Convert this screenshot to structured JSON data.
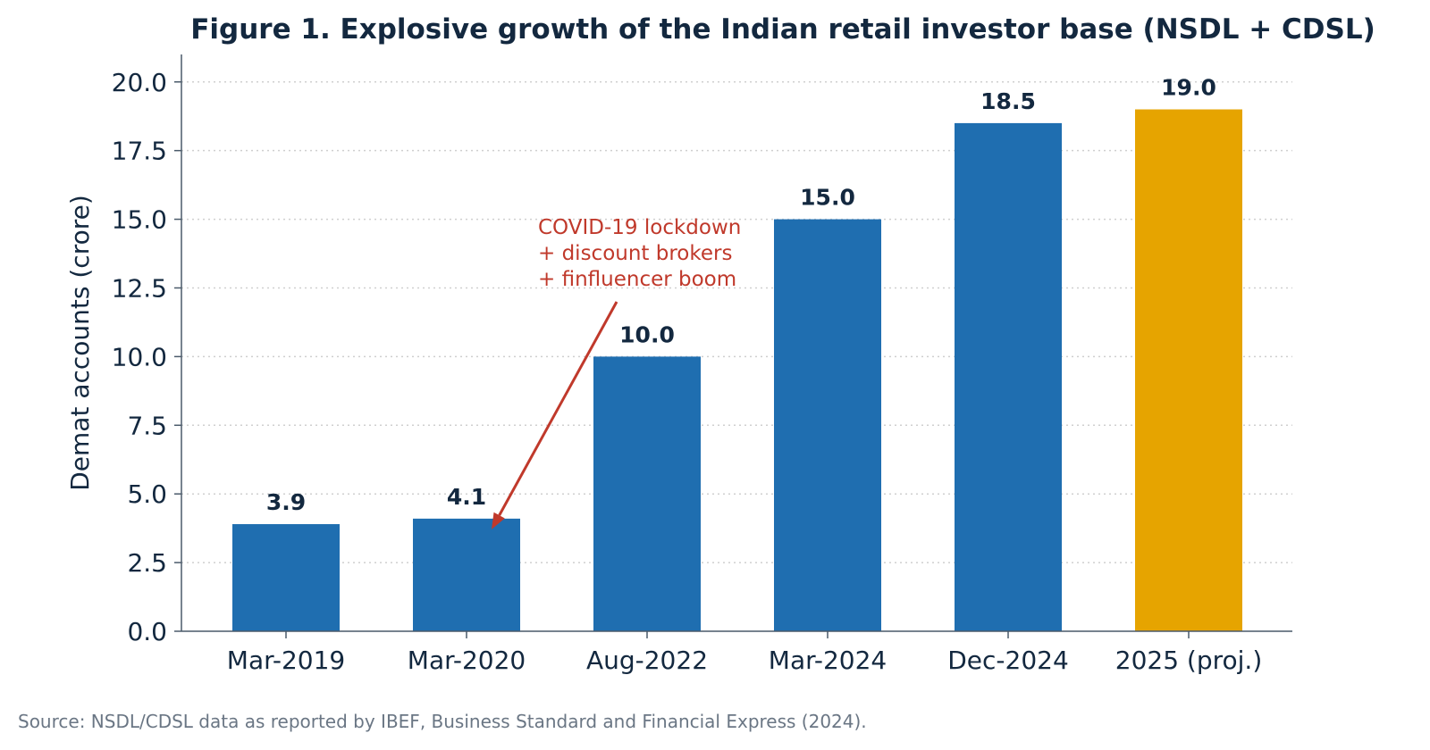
{
  "chart_data": {
    "type": "bar",
    "title": "Figure 1.  Explosive growth of the Indian retail investor base (NSDL + CDSL)",
    "ylabel": "Demat accounts (crore)",
    "xlabel": "",
    "categories": [
      "Mar-2019",
      "Mar-2020",
      "Aug-2022",
      "Mar-2024",
      "Dec-2024",
      "2025 (proj.)"
    ],
    "values": [
      3.9,
      4.1,
      10.0,
      15.0,
      18.5,
      19.0
    ],
    "value_labels": [
      "3.9",
      "4.1",
      "10.0",
      "15.0",
      "18.5",
      "19.0"
    ],
    "projected": [
      false,
      false,
      false,
      false,
      false,
      true
    ],
    "ylim": [
      0,
      21
    ],
    "yticks": [
      0,
      2.5,
      5,
      7.5,
      10,
      12.5,
      15,
      17.5,
      20
    ],
    "ytick_labels": [
      "0.0",
      "2.5",
      "5.0",
      "7.5",
      "10.0",
      "12.5",
      "15.0",
      "17.5",
      "20.0"
    ],
    "grid": "horizontal-dotted",
    "legend": "none",
    "annotation": {
      "lines": [
        "COVID-19 lockdown",
        "+ discount brokers",
        "+ finfluencer boom"
      ],
      "target_category": "Mar-2020",
      "target_value": 4.1
    },
    "colors": {
      "bar": "#1f6eb0",
      "projected_bar": "#e6a400",
      "title": "#13283f",
      "annotation": "#c0392b",
      "axis": "#4a5a6a",
      "grid": "#cfcfcf",
      "source": "#6a7684"
    }
  },
  "source_note": "Source: NSDL/CDSL data as reported by IBEF, Business Standard and Financial Express (2024)."
}
